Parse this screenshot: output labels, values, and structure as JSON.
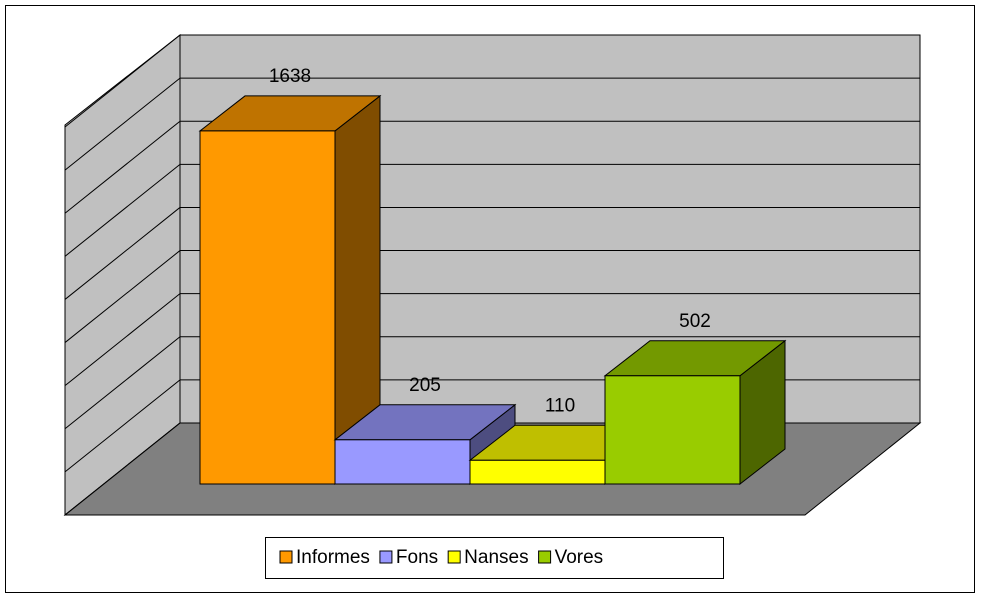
{
  "chart_data": {
    "type": "bar3d",
    "series": [
      {
        "name": "Informes",
        "color": "#ff9900",
        "values": [
          1638
        ]
      },
      {
        "name": "Fons",
        "color": "#9999ff",
        "values": [
          205
        ]
      },
      {
        "name": "Nanses",
        "color": "#ffff00",
        "values": [
          110
        ]
      },
      {
        "name": "Vores",
        "color": "#99cc00",
        "values": [
          502
        ]
      }
    ],
    "ylim": [
      0,
      1800
    ],
    "yticks": [
      0,
      200,
      400,
      600,
      800,
      1000,
      1200,
      1400,
      1600,
      1800
    ],
    "grid": true,
    "legend": "bottom"
  }
}
